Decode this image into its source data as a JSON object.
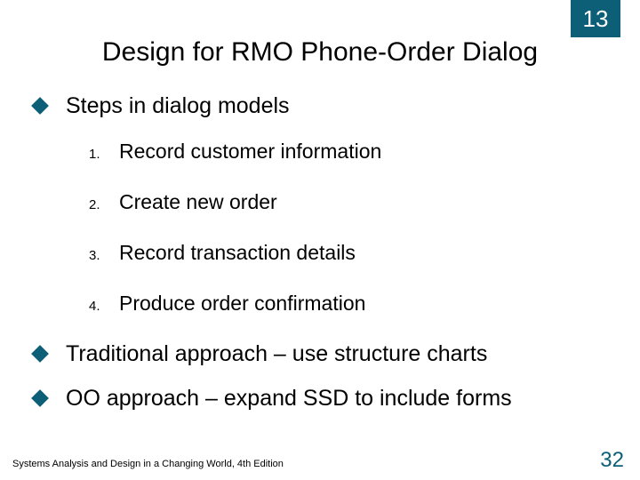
{
  "colors": {
    "badge_bg": "#0d5e77",
    "diamond_fill": "#0d5e77",
    "page_number": "#0d5e77",
    "text": "#000000",
    "background": "#ffffff"
  },
  "chapter_number": "13",
  "title": "Design for RMO Phone-Order Dialog",
  "bullets": [
    {
      "text": "Steps in dialog models"
    },
    {
      "text": "Traditional approach – use structure charts"
    },
    {
      "text": "OO approach – expand SSD to include forms"
    }
  ],
  "numbered_steps": [
    {
      "n": "1.",
      "text": "Record customer information"
    },
    {
      "n": "2.",
      "text": "Create new order"
    },
    {
      "n": "3.",
      "text": "Record transaction details"
    },
    {
      "n": "4.",
      "text": "Produce order confirmation"
    }
  ],
  "footer_left": "Systems Analysis and Design in a Changing World, 4th Edition",
  "page_number": "32"
}
